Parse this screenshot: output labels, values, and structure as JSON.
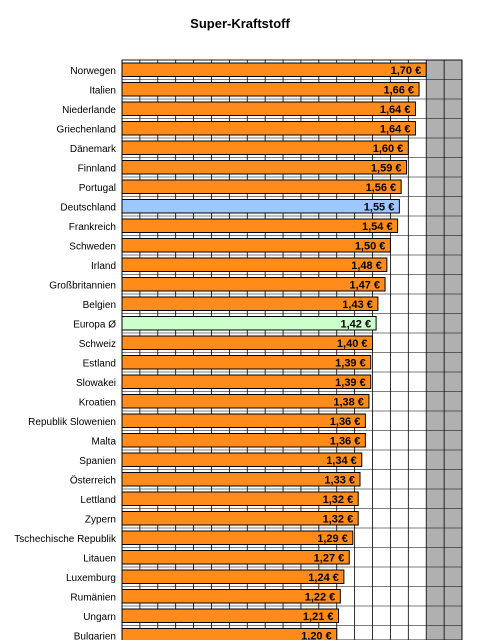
{
  "colors": {
    "bar": "#ff8c1a",
    "highlight_germany": "#9cc7ff",
    "highlight_europe": "#ccffcc",
    "grid_band": "#b0b0b0",
    "plot_bg": "#ffffff"
  },
  "chart_data": {
    "type": "bar",
    "orientation": "horizontal",
    "title": "Super-Kraftstoff",
    "value_format_suffix": " €",
    "categories": [
      "Norwegen",
      "Italien",
      "Niederlande",
      "Griechenland",
      "Dänemark",
      "Finnland",
      "Portugal",
      "Deutschland",
      "Frankreich",
      "Schweden",
      "Irland",
      "Großbritannien",
      "Belgien",
      "Europa Ø",
      "Schweiz",
      "Estland",
      "Slowakei",
      "Kroatien",
      "Republik Slowenien",
      "Malta",
      "Spanien",
      "Österreich",
      "Lettland",
      "Zypern",
      "Tschechische Republik",
      "Litauen",
      "Luxemburg",
      "Rumänien",
      "Ungarn",
      "Bulgarien"
    ],
    "values": [
      1.7,
      1.66,
      1.64,
      1.64,
      1.6,
      1.59,
      1.56,
      1.55,
      1.54,
      1.5,
      1.48,
      1.47,
      1.43,
      1.42,
      1.4,
      1.39,
      1.39,
      1.38,
      1.36,
      1.36,
      1.34,
      1.33,
      1.32,
      1.32,
      1.29,
      1.27,
      1.24,
      1.22,
      1.21,
      1.2
    ],
    "value_labels": [
      "1,70 €",
      "1,66 €",
      "1,64 €",
      "1,64 €",
      "1,60 €",
      "1,59 €",
      "1,56 €",
      "1,55 €",
      "1,54 €",
      "1,50 €",
      "1,48 €",
      "1,47 €",
      "1,43 €",
      "1,42 €",
      "1,40 €",
      "1,39 €",
      "1,39 €",
      "1,38 €",
      "1,36 €",
      "1,36 €",
      "1,34 €",
      "1,33 €",
      "1,32 €",
      "1,32 €",
      "1,29 €",
      "1,27 €",
      "1,24 €",
      "1,22 €",
      "1,21 €",
      "1,20 €"
    ],
    "highlighted": {
      "Deutschland": "highlight_germany",
      "Europa Ø": "highlight_europe"
    },
    "xlim": [
      0,
      1.9
    ],
    "grid": true,
    "legend": "none"
  }
}
